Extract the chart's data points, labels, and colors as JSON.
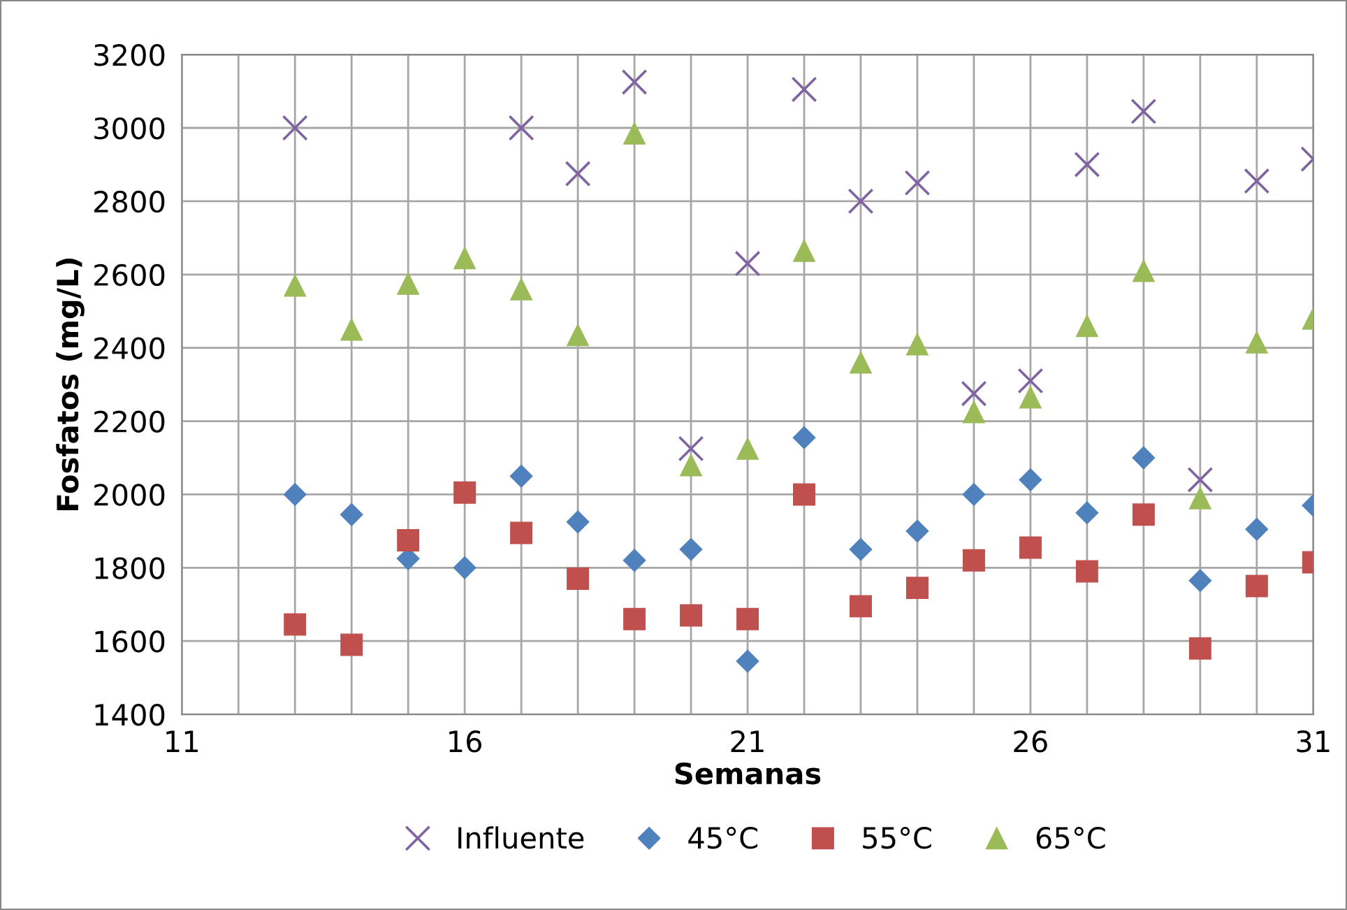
{
  "chart_data": {
    "type": "scatter",
    "xlabel": "Semanas",
    "ylabel": "Fosfatos (mg/L)",
    "xlim": [
      11,
      31
    ],
    "ylim": [
      1400,
      3200
    ],
    "xticks": [
      11,
      {
        "value": 12,
        "label": null
      },
      {
        "value": 13,
        "label": null
      },
      {
        "value": 14,
        "label": null
      },
      {
        "value": 15,
        "label": null
      },
      16,
      {
        "value": 17,
        "label": null
      },
      {
        "value": 18,
        "label": null
      },
      {
        "value": 19,
        "label": null
      },
      {
        "value": 20,
        "label": null
      },
      21,
      {
        "value": 22,
        "label": null
      },
      {
        "value": 23,
        "label": null
      },
      {
        "value": 24,
        "label": null
      },
      {
        "value": 25,
        "label": null
      },
      26,
      {
        "value": 27,
        "label": null
      },
      {
        "value": 28,
        "label": null
      },
      {
        "value": 29,
        "label": null
      },
      {
        "value": 30,
        "label": null
      },
      31
    ],
    "yticks": [
      1400,
      1600,
      1800,
      2000,
      2200,
      2400,
      2600,
      2800,
      3000,
      3200
    ],
    "grid": true,
    "legend": "bottom",
    "series": [
      {
        "name": "Influente",
        "color": "#8064a2",
        "marker": "cross",
        "x": [
          13,
          17,
          18,
          19,
          20,
          21,
          22,
          23,
          24,
          25,
          26,
          27,
          28,
          29,
          30,
          31
        ],
        "values": [
          3000,
          3000,
          2875,
          3125,
          2125,
          2630,
          3105,
          2800,
          2850,
          2275,
          2310,
          2900,
          3045,
          2040,
          2855,
          2915
        ]
      },
      {
        "name": "45°C",
        "color": "#4f81bd",
        "marker": "diamond",
        "x": [
          13,
          14,
          15,
          16,
          17,
          18,
          19,
          20,
          21,
          22,
          23,
          24,
          25,
          26,
          27,
          28,
          29,
          30,
          31
        ],
        "values": [
          2000,
          1945,
          1825,
          1800,
          2050,
          1925,
          1820,
          1850,
          1545,
          2155,
          1850,
          1900,
          2000,
          2040,
          1950,
          2100,
          1765,
          1905,
          1970
        ]
      },
      {
        "name": "55°C",
        "color": "#c0504d",
        "marker": "square",
        "x": [
          13,
          14,
          15,
          16,
          17,
          18,
          19,
          20,
          21,
          22,
          23,
          24,
          25,
          26,
          27,
          28,
          29,
          30,
          31
        ],
        "values": [
          1645,
          1590,
          1875,
          2005,
          1895,
          1770,
          1660,
          1670,
          1660,
          2000,
          1695,
          1745,
          1820,
          1855,
          1790,
          1945,
          1580,
          1750,
          1815
        ]
      },
      {
        "name": "65°C",
        "color": "#9bbb59",
        "marker": "triangle",
        "x": [
          13,
          14,
          15,
          16,
          17,
          18,
          19,
          20,
          21,
          22,
          23,
          24,
          25,
          26,
          27,
          28,
          29,
          30,
          31
        ],
        "values": [
          2570,
          2450,
          2575,
          2645,
          2560,
          2435,
          2985,
          2080,
          2125,
          2665,
          2360,
          2410,
          2225,
          2265,
          2460,
          2610,
          1990,
          2415,
          2480
        ]
      }
    ]
  }
}
